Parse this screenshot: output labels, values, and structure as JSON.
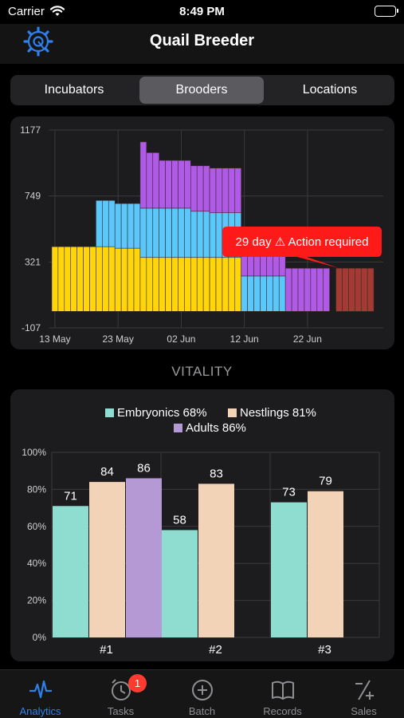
{
  "status_bar": {
    "carrier": "Carrier",
    "time": "8:49 PM"
  },
  "nav": {
    "title": "Quail Breeder"
  },
  "segments": [
    {
      "label": "Incubators",
      "active": false
    },
    {
      "label": "Brooders",
      "active": true
    },
    {
      "label": "Locations",
      "active": false
    }
  ],
  "callout": {
    "text": "29 day ⚠ Action required"
  },
  "vitality": {
    "title": "VITALITY"
  },
  "colors": {
    "yellow": "#ffd60a",
    "cyan": "#5ac8fa",
    "purple": "#b05ae8",
    "brown": "#a33a33",
    "embryonics": "#8fddd0",
    "nestlings": "#f3d3b7",
    "adults": "#b599d4",
    "accent": "#2f80ed",
    "callout": "#ff1a1a"
  },
  "chart_data": [
    {
      "type": "bar",
      "stacked": true,
      "y_ticks": [
        "1177",
        "749",
        "321",
        "-107"
      ],
      "x_ticks": [
        "13 May",
        "23 May",
        "02 Jun",
        "12 Jun",
        "22 Jun"
      ],
      "ylim": [
        -107,
        1177
      ],
      "grid": true,
      "segments": [
        {
          "from_day": 0,
          "to_day": 7,
          "yellow": 420,
          "cyan": 0,
          "purple": 0,
          "brown": 0
        },
        {
          "from_day": 7,
          "to_day": 10,
          "yellow": 420,
          "cyan": 300,
          "purple": 0,
          "brown": 0
        },
        {
          "from_day": 10,
          "to_day": 14,
          "yellow": 410,
          "cyan": 290,
          "purple": 0,
          "brown": 0
        },
        {
          "from_day": 14,
          "to_day": 15,
          "yellow": 350,
          "cyan": 320,
          "purple": 430,
          "brown": 0
        },
        {
          "from_day": 15,
          "to_day": 17,
          "yellow": 350,
          "cyan": 320,
          "purple": 360,
          "brown": 0
        },
        {
          "from_day": 17,
          "to_day": 22,
          "yellow": 350,
          "cyan": 320,
          "purple": 310,
          "brown": 0
        },
        {
          "from_day": 22,
          "to_day": 25,
          "yellow": 350,
          "cyan": 300,
          "purple": 295,
          "brown": 0
        },
        {
          "from_day": 25,
          "to_day": 30,
          "yellow": 350,
          "cyan": 290,
          "purple": 290,
          "brown": 0
        },
        {
          "from_day": 30,
          "to_day": 37,
          "yellow": 0,
          "cyan": 230,
          "purple": 150,
          "brown": 0
        },
        {
          "from_day": 37,
          "to_day": 44,
          "yellow": 0,
          "cyan": 0,
          "purple": 280,
          "brown": 0
        },
        {
          "from_day": 45,
          "to_day": 51,
          "yellow": 0,
          "cyan": 0,
          "purple": 0,
          "brown": 280
        }
      ],
      "x_tick_days": [
        0,
        10,
        20,
        30,
        40
      ],
      "x_range_days": [
        -1,
        52
      ]
    },
    {
      "type": "bar",
      "title": "VITALITY",
      "legend": [
        {
          "label": "Embryonics 68%",
          "key": "embryonics"
        },
        {
          "label": "Nestlings 81%",
          "key": "nestlings"
        },
        {
          "label": "Adults 86%",
          "key": "adults"
        }
      ],
      "categories": [
        "#1",
        "#2",
        "#3"
      ],
      "series": [
        {
          "name": "Embryonics",
          "key": "embryonics",
          "values": [
            71,
            58,
            73
          ]
        },
        {
          "name": "Nestlings",
          "key": "nestlings",
          "values": [
            84,
            83,
            79
          ]
        },
        {
          "name": "Adults",
          "key": "adults",
          "values": [
            86,
            null,
            null
          ]
        }
      ],
      "y_ticks": [
        "100%",
        "80%",
        "60%",
        "40%",
        "20%",
        "0%"
      ],
      "ylim": [
        0,
        100
      ],
      "grid": true
    }
  ],
  "tabs": [
    {
      "label": "Analytics",
      "icon": "pulse-icon",
      "active": true
    },
    {
      "label": "Tasks",
      "icon": "alarm-clock-icon",
      "active": false,
      "badge": "1"
    },
    {
      "label": "Batch",
      "icon": "plus-circle-icon",
      "active": false
    },
    {
      "label": "Records",
      "icon": "book-icon",
      "active": false
    },
    {
      "label": "Sales",
      "icon": "plus-minus-icon",
      "active": false
    }
  ]
}
